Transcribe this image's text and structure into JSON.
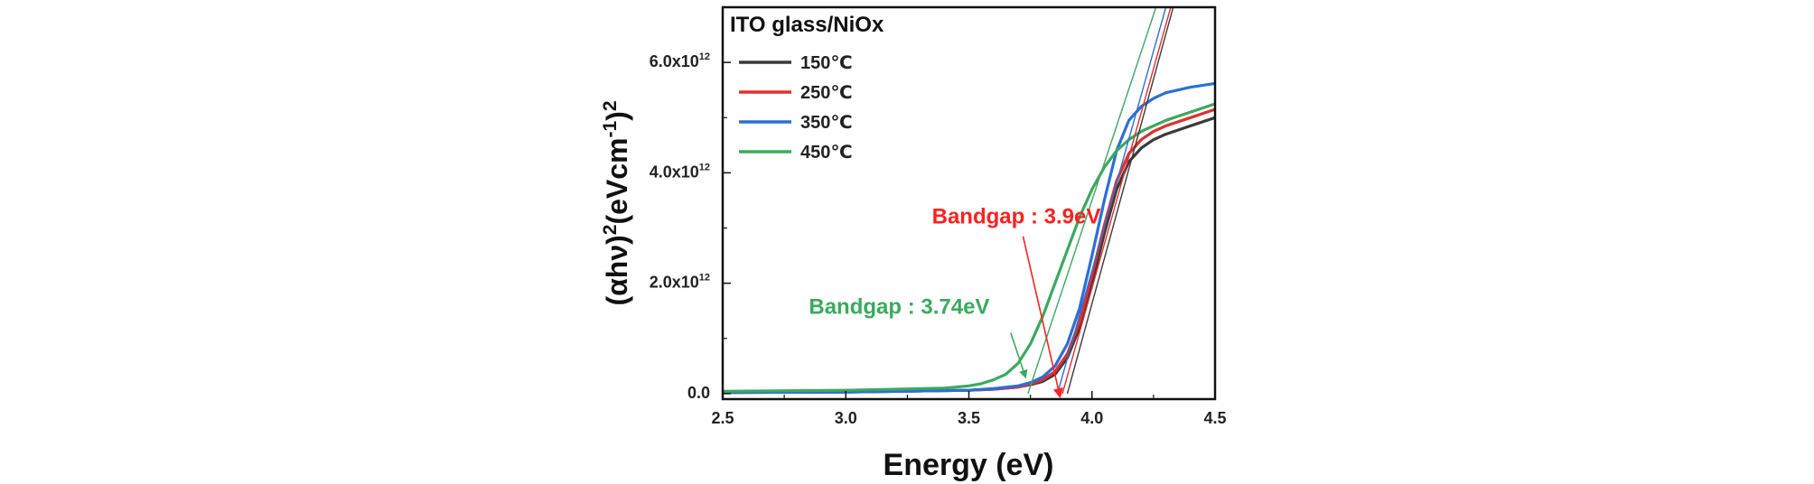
{
  "chart_data": {
    "type": "line",
    "xlabel": "Energy (eV)",
    "ylabel_parts": [
      "(αhν)",
      "2",
      "(eVcm",
      "-1",
      ")",
      "2"
    ],
    "xlim": [
      2.5,
      4.5
    ],
    "ylim": [
      -0.1,
      7.0
    ],
    "y_unit_exponent": "12",
    "xticks": [
      2.5,
      3.0,
      3.5,
      4.0,
      4.5
    ],
    "xtick_labels": [
      "2.5",
      "3.0",
      "3.5",
      "4.0",
      "4.5"
    ],
    "yticks": [
      0,
      2,
      4,
      6
    ],
    "ytick_labels": [
      {
        "mantissa": "0.0",
        "exp": ""
      },
      {
        "mantissa": "2.0x10",
        "exp": "12"
      },
      {
        "mantissa": "4.0x10",
        "exp": "12"
      },
      {
        "mantissa": "6.0x10",
        "exp": "12"
      }
    ],
    "grid": false,
    "legend_title": "ITO glass/NiOx",
    "legend_position": "top-left",
    "series": [
      {
        "name": "150℃",
        "color": "#3a3a3a",
        "x": [
          2.5,
          3.0,
          3.5,
          3.6,
          3.7,
          3.75,
          3.8,
          3.85,
          3.9,
          3.95,
          4.0,
          4.05,
          4.1,
          4.15,
          4.2,
          4.25,
          4.3,
          4.4,
          4.5
        ],
        "y": [
          0.02,
          0.03,
          0.06,
          0.08,
          0.12,
          0.16,
          0.22,
          0.35,
          0.65,
          1.2,
          2.0,
          2.9,
          3.7,
          4.2,
          4.45,
          4.6,
          4.7,
          4.85,
          5.0
        ]
      },
      {
        "name": "250℃",
        "color": "#e03030",
        "x": [
          2.5,
          3.0,
          3.5,
          3.6,
          3.7,
          3.75,
          3.8,
          3.85,
          3.9,
          3.95,
          4.0,
          4.05,
          4.1,
          4.15,
          4.2,
          4.25,
          4.3,
          4.4,
          4.5
        ],
        "y": [
          0.02,
          0.03,
          0.06,
          0.08,
          0.12,
          0.17,
          0.25,
          0.4,
          0.72,
          1.3,
          2.15,
          3.05,
          3.85,
          4.35,
          4.6,
          4.75,
          4.85,
          5.0,
          5.15
        ]
      },
      {
        "name": "350℃",
        "color": "#2a6fd6",
        "x": [
          2.5,
          3.0,
          3.5,
          3.6,
          3.7,
          3.75,
          3.8,
          3.85,
          3.9,
          3.95,
          4.0,
          4.05,
          4.1,
          4.15,
          4.2,
          4.25,
          4.3,
          4.4,
          4.5
        ],
        "y": [
          0.02,
          0.03,
          0.06,
          0.09,
          0.14,
          0.2,
          0.3,
          0.5,
          0.9,
          1.55,
          2.5,
          3.5,
          4.4,
          4.95,
          5.2,
          5.35,
          5.45,
          5.55,
          5.62
        ]
      },
      {
        "name": "450℃",
        "color": "#3aaa5e",
        "x": [
          2.5,
          3.0,
          3.4,
          3.5,
          3.55,
          3.6,
          3.65,
          3.7,
          3.75,
          3.8,
          3.85,
          3.9,
          3.95,
          4.0,
          4.05,
          4.1,
          4.15,
          4.2,
          4.3,
          4.4,
          4.5
        ],
        "y": [
          0.04,
          0.06,
          0.1,
          0.14,
          0.18,
          0.25,
          0.35,
          0.55,
          0.9,
          1.4,
          2.0,
          2.6,
          3.2,
          3.7,
          4.1,
          4.4,
          4.6,
          4.75,
          4.95,
          5.1,
          5.25
        ]
      }
    ],
    "tangent_lines": [
      {
        "color": "#3a3a3a",
        "x0": 3.9,
        "x1": 4.33
      },
      {
        "color": "#e03030",
        "x0": 3.88,
        "x1": 4.32
      },
      {
        "color": "#2a6fd6",
        "x0": 3.86,
        "x1": 4.3
      },
      {
        "color": "#3aaa5e",
        "x0": 3.74,
        "x1": 4.26
      }
    ],
    "annotations": [
      {
        "text": "Bandgap : 3.9eV",
        "color": "#ff2020",
        "text_x": 3.35,
        "text_y": 3.08,
        "arrow_from": [
          3.72,
          2.85
        ],
        "arrow_to": [
          3.87,
          -0.05
        ]
      },
      {
        "text": "Bandgap : 3.74eV",
        "color": "#3aaa5e",
        "text_x": 2.85,
        "text_y": 1.45,
        "arrow_from": [
          3.67,
          1.1
        ],
        "arrow_to": [
          3.73,
          0.3
        ]
      }
    ]
  }
}
